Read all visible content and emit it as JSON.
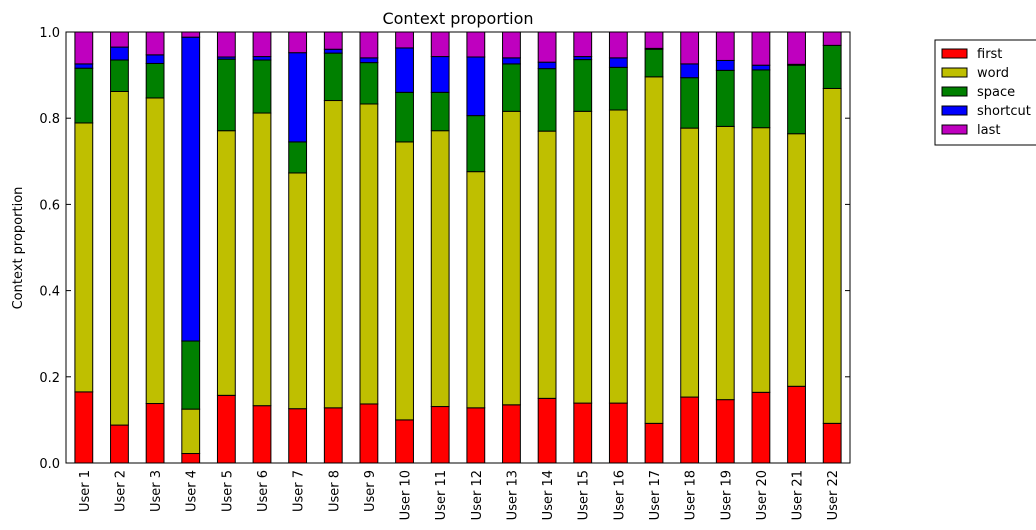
{
  "chart_data": {
    "type": "stacked_bar",
    "title": "Context proportion",
    "y_label": "Context proportion",
    "categories": [
      "User 1",
      "User 2",
      "User 3",
      "User 4",
      "User 5",
      "User 6",
      "User 7",
      "User 8",
      "User 9",
      "User 10",
      "User 11",
      "User 12",
      "User 13",
      "User 14",
      "User 15",
      "User 16",
      "User 17",
      "User 18",
      "User 19",
      "User 20",
      "User 21",
      "User 22"
    ],
    "series": [
      {
        "name": "first",
        "color": "#ff0000",
        "values": [
          0.165,
          0.088,
          0.138,
          0.022,
          0.157,
          0.133,
          0.126,
          0.128,
          0.137,
          0.1,
          0.131,
          0.128,
          0.135,
          0.15,
          0.139,
          0.139,
          0.092,
          0.153,
          0.147,
          0.164,
          0.178,
          0.092
        ]
      },
      {
        "name": "word",
        "color": "#bfbf00",
        "values": [
          0.624,
          0.774,
          0.709,
          0.103,
          0.614,
          0.679,
          0.547,
          0.713,
          0.696,
          0.645,
          0.64,
          0.548,
          0.681,
          0.62,
          0.677,
          0.68,
          0.804,
          0.624,
          0.634,
          0.614,
          0.586,
          0.777
        ]
      },
      {
        "name": "space",
        "color": "#008000",
        "values": [
          0.127,
          0.073,
          0.08,
          0.158,
          0.166,
          0.123,
          0.072,
          0.11,
          0.096,
          0.115,
          0.089,
          0.13,
          0.11,
          0.145,
          0.12,
          0.099,
          0.064,
          0.117,
          0.13,
          0.134,
          0.159,
          0.1
        ]
      },
      {
        "name": "shortcut",
        "color": "#0000ff",
        "values": [
          0.01,
          0.03,
          0.02,
          0.705,
          0.005,
          0.008,
          0.207,
          0.009,
          0.011,
          0.103,
          0.083,
          0.136,
          0.014,
          0.015,
          0.007,
          0.022,
          0.002,
          0.032,
          0.023,
          0.011,
          0.002,
          0.0
        ]
      },
      {
        "name": "last",
        "color": "#bf00bf",
        "values": [
          0.074,
          0.035,
          0.053,
          0.012,
          0.058,
          0.057,
          0.048,
          0.04,
          0.06,
          0.037,
          0.057,
          0.058,
          0.06,
          0.07,
          0.057,
          0.06,
          0.038,
          0.074,
          0.066,
          0.077,
          0.075,
          0.031
        ]
      }
    ],
    "ylim": [
      0,
      1
    ],
    "yticks": [
      {
        "value": 0,
        "label": "0.0"
      },
      0.2,
      0.4,
      0.6,
      0.8,
      {
        "value": 1,
        "label": "1.0"
      }
    ],
    "legend": "right"
  }
}
